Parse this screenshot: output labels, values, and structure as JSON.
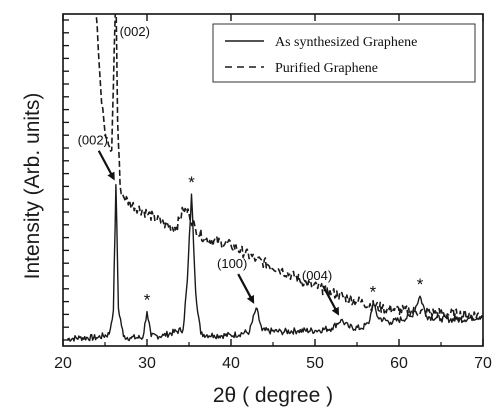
{
  "chart_data": {
    "type": "line",
    "title": "",
    "xlabel": "2θ ( degree )",
    "ylabel": "Intensity (Arb. units)",
    "xlim": [
      20,
      70
    ],
    "x_ticks": [
      "20",
      "30",
      "40",
      "50",
      "60",
      "70"
    ],
    "y_ticks_labeled": false,
    "grid": false,
    "legend_position": "top-right",
    "series": [
      {
        "name": "As synthesized Graphene",
        "line_style": "solid",
        "color": "#1a1a1a",
        "x": [
          20.5,
          22,
          24,
          25.5,
          26.0,
          26.3,
          26.6,
          27.2,
          28,
          29.5,
          30.0,
          30.5,
          32,
          34.3,
          34.8,
          35.3,
          35.8,
          36.4,
          38,
          40,
          42.2,
          43.0,
          43.7,
          46,
          48,
          50,
          52,
          53.1,
          54,
          55.5,
          56.4,
          56.9,
          57.5,
          59,
          61.5,
          62.5,
          63.3,
          65,
          67,
          69.9
        ],
        "y": [
          0.6,
          0.7,
          0.7,
          1.0,
          3.0,
          13.6,
          3.2,
          0.8,
          0.7,
          0.7,
          2.9,
          0.8,
          0.9,
          1.4,
          5.5,
          12.8,
          4.5,
          1.0,
          0.9,
          0.9,
          1.2,
          3.2,
          1.3,
          1.2,
          1.3,
          1.3,
          1.5,
          2.2,
          1.6,
          1.5,
          1.9,
          3.6,
          2.4,
          2.0,
          2.5,
          4.2,
          2.5,
          2.3,
          2.2,
          2.5
        ]
      },
      {
        "name": "Purified Graphene",
        "line_style": "dashed",
        "color": "#1a1a1a",
        "x": [
          23.8,
          24.2,
          24.6,
          25.0,
          25.4,
          25.8,
          26.1,
          26.3,
          26.5,
          26.8,
          27.2,
          28,
          30,
          32,
          33.5,
          34.3,
          35.0,
          35.8,
          37,
          40,
          43,
          46,
          49,
          52,
          55,
          58,
          62,
          66,
          69.9
        ],
        "y": [
          30.0,
          25.0,
          20.5,
          18.0,
          17.0,
          16.5,
          25.0,
          30.0,
          19.0,
          13.5,
          12.6,
          12.0,
          11.2,
          10.3,
          10.0,
          11.5,
          11.2,
          9.8,
          9.0,
          8.5,
          7.3,
          6.4,
          5.3,
          4.5,
          3.8,
          3.2,
          2.9,
          2.7,
          2.6
        ]
      }
    ],
    "annotations": [
      {
        "text": "(002)",
        "x": 26.5,
        "y": 30.0,
        "series": 1,
        "arrow": false
      },
      {
        "text": "(002)",
        "x": 26.4,
        "y": 13.6,
        "series": 0,
        "arrow": true
      },
      {
        "text": "*",
        "x": 30.0,
        "y": 2.9,
        "series": 0,
        "arrow": false
      },
      {
        "text": "*",
        "x": 35.3,
        "y": 12.8,
        "series": 0,
        "arrow": false
      },
      {
        "text": "(100)",
        "x": 43.0,
        "y": 3.2,
        "series": 0,
        "arrow": true
      },
      {
        "text": "(004)",
        "x": 53.1,
        "y": 2.2,
        "series": 0,
        "arrow": true
      },
      {
        "text": "*",
        "x": 56.9,
        "y": 3.6,
        "series": 0,
        "arrow": false
      },
      {
        "text": "*",
        "x": 62.5,
        "y": 4.2,
        "series": 0,
        "arrow": false
      }
    ]
  }
}
